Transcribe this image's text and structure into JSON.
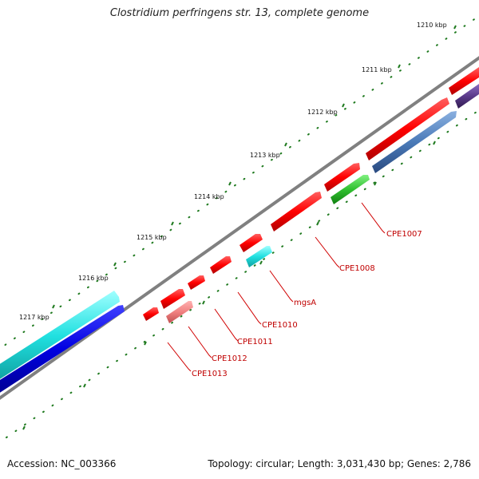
{
  "title": "Clostridium perfringens str. 13, complete genome",
  "footer": {
    "accession": "Accession: NC_003366",
    "summary": "Topology: circular; Length: 3,031,430 bp; Genes: 2,786"
  },
  "colors": {
    "backbone": "#808080",
    "ticks": "#1f7a1f",
    "label_lines": "#d00000",
    "label_text": "#c00000",
    "cds": "#ff0000",
    "trna_cyan": "#18c8c8",
    "rrna_cyan": "#30e0e0",
    "blue": "#0000d0",
    "steel": "#4a7ab8",
    "green": "#30c030",
    "pink": "#f08080",
    "purple": "#5a3a8a"
  },
  "scale_labels": [
    {
      "id": "kbp-1210",
      "text": "1210 kbp"
    },
    {
      "id": "kbp-1211",
      "text": "1211 kbp"
    },
    {
      "id": "kbp-1212",
      "text": "1212 kbp"
    },
    {
      "id": "kbp-1213",
      "text": "1213 kbp"
    },
    {
      "id": "kbp-1214",
      "text": "1214 kbp"
    },
    {
      "id": "kbp-1215",
      "text": "1215 kbp"
    },
    {
      "id": "kbp-1216",
      "text": "1216 kbp"
    },
    {
      "id": "kbp-1217",
      "text": "1217 kbp"
    }
  ],
  "gene_labels": [
    {
      "id": "CPE1007",
      "text": "CPE1007"
    },
    {
      "id": "CPE1008",
      "text": "CPE1008"
    },
    {
      "id": "mgsA",
      "text": "mgsA"
    },
    {
      "id": "CPE1010",
      "text": "CPE1010"
    },
    {
      "id": "CPE1011",
      "text": "CPE1011"
    },
    {
      "id": "CPE1012",
      "text": "CPE1012"
    },
    {
      "id": "CPE1013",
      "text": "CPE1013"
    }
  ]
}
